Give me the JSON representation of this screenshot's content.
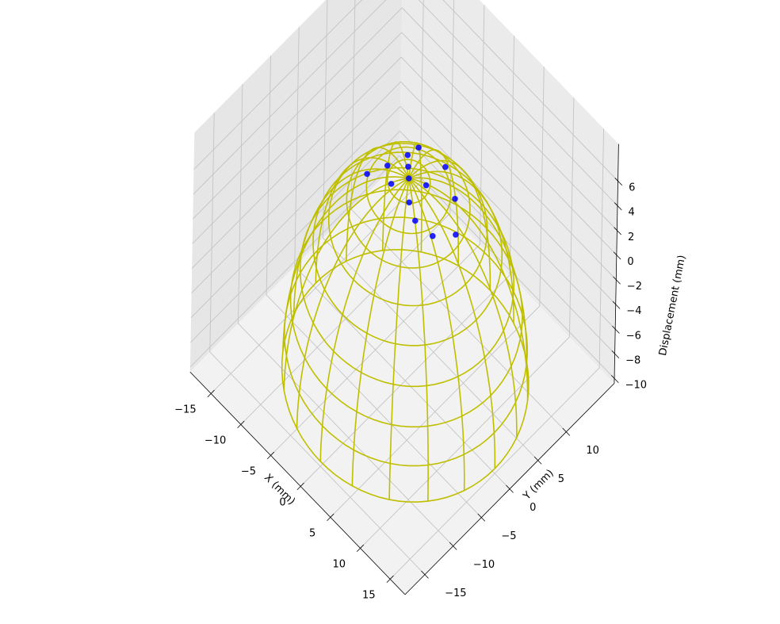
{
  "chart_data": {
    "type": "3d-surface-scatter",
    "x_axis": {
      "label": "X (mm)",
      "ticks": [
        -15,
        -10,
        -5,
        0,
        5,
        10,
        15
      ],
      "tick_labels": [
        "−15",
        "−10",
        "−5",
        "0",
        "5",
        "10",
        "15"
      ]
    },
    "y_axis": {
      "label": "Y (mm)",
      "ticks": [
        -15,
        -10,
        -5,
        0,
        5,
        10
      ],
      "tick_labels": [
        "−15",
        "−10",
        "−5",
        "0",
        "5",
        "10"
      ]
    },
    "z_axis": {
      "label": "Displacement (mm)",
      "ticks": [
        -10,
        -8,
        -6,
        -4,
        -2,
        0,
        2,
        4,
        6
      ],
      "tick_labels": [
        "−10",
        "−8",
        "−6",
        "−4",
        "−2",
        "0",
        "2",
        "4",
        "6"
      ]
    },
    "surface": {
      "shape": "hemisphere wireframe",
      "color": "#bfbf00",
      "radius": 15,
      "z_base": -10,
      "z_top": 6
    },
    "scatter": {
      "color": "#0000ff",
      "points": [
        {
          "x": 0,
          "y": 0,
          "z": 6
        },
        {
          "x": -1.5,
          "y": 1.5,
          "z": 5.5
        },
        {
          "x": 1.5,
          "y": 1.5,
          "z": 5.5
        },
        {
          "x": 1.5,
          "y": -1.5,
          "z": 5.5
        },
        {
          "x": -1.5,
          "y": -1.5,
          "z": 5.5
        },
        {
          "x": -3,
          "y": 3,
          "z": 5
        },
        {
          "x": -4,
          "y": 0.5,
          "z": 4.8
        },
        {
          "x": -5.5,
          "y": -1.5,
          "z": 4.3
        },
        {
          "x": -3.5,
          "y": 5.5,
          "z": 4.2
        },
        {
          "x": 0.5,
          "y": 6,
          "z": 4.4
        },
        {
          "x": 4,
          "y": 4,
          "z": 4.5
        },
        {
          "x": 5,
          "y": -1,
          "z": 4.3
        },
        {
          "x": 3,
          "y": -2,
          "z": 5
        },
        {
          "x": 6.5,
          "y": 1.5,
          "z": 4
        }
      ]
    }
  }
}
